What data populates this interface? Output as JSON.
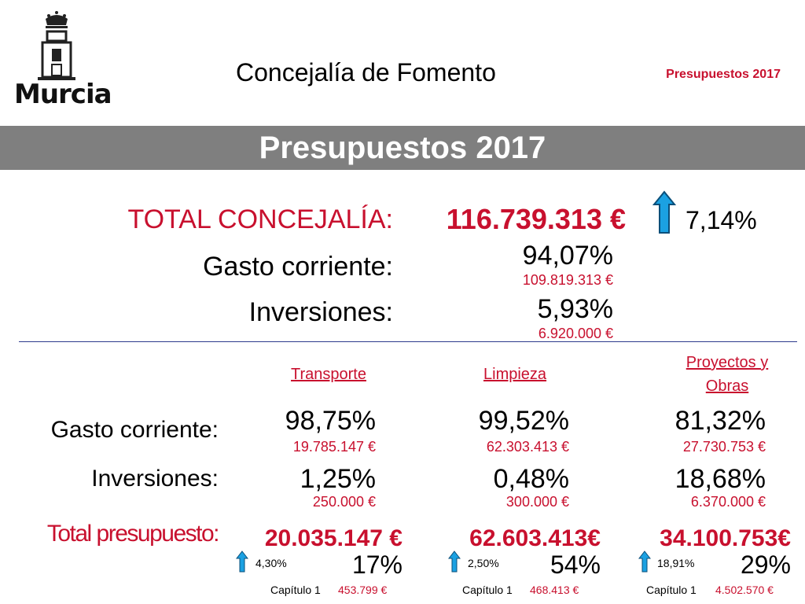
{
  "header": {
    "logo_text": "Murcia",
    "department": "Concejalía de Fomento",
    "top_right": "Presupuestos 2017",
    "banner_title": "Presupuestos 2017"
  },
  "summary": {
    "total_label": "TOTAL CONCEJALÍA:",
    "total_value": "116.739.313 €",
    "total_change": "7,14%",
    "current_label": "Gasto corriente:",
    "current_pct": "94,07%",
    "current_amount": "109.819.313 €",
    "invest_label": "Inversiones:",
    "invest_pct": "5,93%",
    "invest_amount": "6.920.000 €"
  },
  "breakdown": {
    "row_labels": {
      "current": "Gasto corriente:",
      "invest": "Inversiones:",
      "total": "Total presupuesto:"
    },
    "columns": [
      {
        "name": "Transporte",
        "current_pct": "98,75%",
        "current_amount": "19.785.147 €",
        "invest_pct": "1,25%",
        "invest_amount": "250.000 €",
        "total": "20.035.147 €",
        "change": "4,30%",
        "share": "17%",
        "chapter_label": "Capítulo 1",
        "chapter_amount": "453.799 €"
      },
      {
        "name": "Limpieza",
        "current_pct": "99,52%",
        "current_amount": "62.303.413 €",
        "invest_pct": "0,48%",
        "invest_amount": "300.000 €",
        "total": "62.603.413€",
        "change": "2,50%",
        "share": "54%",
        "chapter_label": "Capítulo 1",
        "chapter_amount": "468.413 €"
      },
      {
        "name_line1": "Proyectos y",
        "name_line2": "Obras",
        "current_pct": "81,32%",
        "current_amount": "27.730.753 €",
        "invest_pct": "18,68%",
        "invest_amount": "6.370.000 €",
        "total": "34.100.753€",
        "change": "18,91%",
        "share": "29%",
        "chapter_label": "Capítulo 1",
        "chapter_amount": "4.502.570 €"
      }
    ]
  }
}
